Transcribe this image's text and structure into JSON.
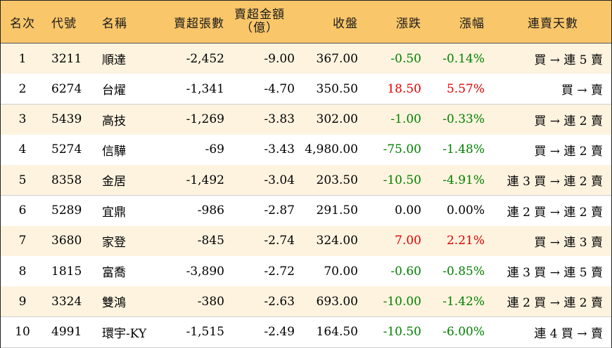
{
  "headers": [
    "名次",
    "代號",
    "名稱",
    "賣超張數",
    "賣超金額",
    "（億）",
    "收盤",
    "漲跌",
    "漲幅",
    "連賣天數"
  ],
  "colors": {
    "header_bg": "#f9c66a",
    "odd_row_bg": "#fef3df",
    "up": "#e00000",
    "down": "#008000"
  },
  "rows": [
    {
      "rank": "1",
      "code": "3211",
      "name": "順達",
      "shares": "-2,452",
      "amount": "-9.00",
      "close": "367.00",
      "change": "-0.50",
      "pct": "-0.14%",
      "streak": "買 → 連 5 賣"
    },
    {
      "rank": "2",
      "code": "6274",
      "name": "台燿",
      "shares": "-1,341",
      "amount": "-4.70",
      "close": "350.50",
      "change": "18.50",
      "pct": "5.57%",
      "streak": "買 → 賣"
    },
    {
      "rank": "3",
      "code": "5439",
      "name": "高技",
      "shares": "-1,269",
      "amount": "-3.83",
      "close": "302.00",
      "change": "-1.00",
      "pct": "-0.33%",
      "streak": "買 → 連 2 賣"
    },
    {
      "rank": "4",
      "code": "5274",
      "name": "信驊",
      "shares": "-69",
      "amount": "-3.43",
      "close": "4,980.00",
      "change": "-75.00",
      "pct": "-1.48%",
      "streak": "買 → 連 2 賣"
    },
    {
      "rank": "5",
      "code": "8358",
      "name": "金居",
      "shares": "-1,492",
      "amount": "-3.04",
      "close": "203.50",
      "change": "-10.50",
      "pct": "-4.91%",
      "streak": "連 3 買 → 連 2 賣"
    },
    {
      "rank": "6",
      "code": "5289",
      "name": "宜鼎",
      "shares": "-986",
      "amount": "-2.87",
      "close": "291.50",
      "change": "0.00",
      "pct": "0.00%",
      "streak": "連 2 買 → 連 2 賣"
    },
    {
      "rank": "7",
      "code": "3680",
      "name": "家登",
      "shares": "-845",
      "amount": "-2.74",
      "close": "324.00",
      "change": "7.00",
      "pct": "2.21%",
      "streak": "買 → 連 3 賣"
    },
    {
      "rank": "8",
      "code": "1815",
      "name": "富喬",
      "shares": "-3,890",
      "amount": "-2.72",
      "close": "70.00",
      "change": "-0.60",
      "pct": "-0.85%",
      "streak": "連 3 買 → 連 5 賣"
    },
    {
      "rank": "9",
      "code": "3324",
      "name": "雙鴻",
      "shares": "-380",
      "amount": "-2.63",
      "close": "693.00",
      "change": "-10.00",
      "pct": "-1.42%",
      "streak": "連 2 買 → 連 2 賣"
    },
    {
      "rank": "10",
      "code": "4991",
      "name": "環宇-KY",
      "shares": "-1,515",
      "amount": "-2.49",
      "close": "164.50",
      "change": "-10.50",
      "pct": "-6.00%",
      "streak": "連 4 買 → 賣"
    }
  ]
}
